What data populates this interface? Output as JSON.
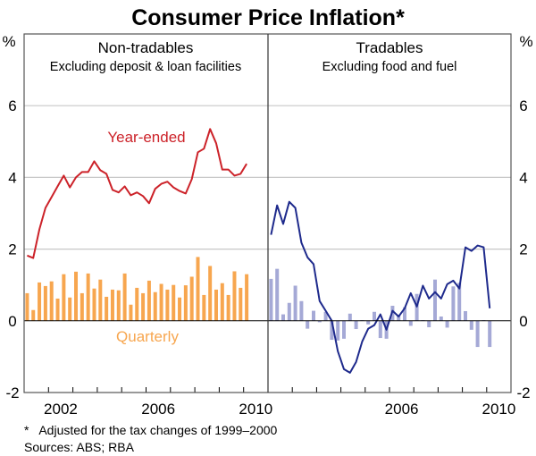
{
  "chart_data": {
    "type": "line+bar",
    "title": "Consumer Price Inflation*",
    "ylabel_left": "%",
    "ylabel_right": "%",
    "ylim": [
      -2,
      8
    ],
    "yticks": [
      -2,
      0,
      2,
      4,
      6
    ],
    "grid": true,
    "x_range_years": [
      2001,
      2010
    ],
    "x_tick_labels": [
      "2002",
      "2006",
      "2010"
    ],
    "x_start_label": "2001-Q1",
    "x_frequency": "quarterly",
    "footnote": "*   Adjusted for the tax changes of 1999–2000",
    "sources": "Sources: ABS; RBA",
    "colors": {
      "year_ended_nt": "#cc2229",
      "quarterly_nt": "#f7a64f",
      "year_ended_t": "#1e2a8c",
      "quarterly_t": "#a5a9d6"
    },
    "panels": [
      {
        "title": "Non-tradables",
        "subtitle": "Excluding deposit & loan facilities",
        "x_tick_labels": [
          "2002",
          "2006",
          "2010"
        ],
        "series": [
          {
            "name": "Year-ended",
            "type": "line",
            "label_position": "top-center",
            "values": [
              1.82,
              1.75,
              2.55,
              3.15,
              3.45,
              3.75,
              4.05,
              3.72,
              4.0,
              4.15,
              4.15,
              4.45,
              4.2,
              4.1,
              3.65,
              3.58,
              3.75,
              3.5,
              3.58,
              3.48,
              3.28,
              3.68,
              3.82,
              3.88,
              3.72,
              3.62,
              3.55,
              3.95,
              4.7,
              4.8,
              5.35,
              4.95,
              4.22,
              4.22,
              4.05,
              4.1,
              4.38
            ]
          },
          {
            "name": "Quarterly",
            "type": "bar",
            "label_position": "bottom-center",
            "values": [
              0.77,
              0.3,
              1.07,
              0.97,
              1.1,
              0.62,
              1.3,
              0.65,
              1.37,
              0.77,
              1.32,
              0.9,
              1.15,
              0.67,
              0.87,
              0.85,
              1.32,
              0.45,
              0.92,
              0.77,
              1.12,
              0.8,
              1.03,
              0.87,
              1.0,
              0.65,
              0.99,
              1.23,
              1.78,
              0.72,
              1.53,
              0.87,
              1.05,
              0.72,
              1.38,
              0.92,
              1.3
            ]
          }
        ]
      },
      {
        "title": "Tradables",
        "subtitle": "Excluding food and fuel",
        "x_tick_labels": [
          "2006",
          "2010"
        ],
        "series": [
          {
            "name": "Year-ended",
            "type": "line",
            "values": [
              2.4,
              3.22,
              2.7,
              3.32,
              3.15,
              2.18,
              1.77,
              1.58,
              0.55,
              0.28,
              0.0,
              -0.85,
              -1.35,
              -1.45,
              -1.15,
              -0.58,
              -0.22,
              -0.12,
              0.18,
              -0.25,
              0.28,
              0.12,
              0.35,
              0.77,
              0.4,
              0.98,
              0.62,
              0.8,
              0.62,
              1.02,
              1.12,
              0.9,
              2.05,
              1.95,
              2.1,
              2.05,
              0.35
            ]
          },
          {
            "name": "Quarterly",
            "type": "bar",
            "values": [
              1.17,
              1.45,
              0.18,
              0.5,
              0.98,
              0.55,
              -0.22,
              0.28,
              -0.04,
              0.25,
              -0.53,
              -0.55,
              -0.5,
              0.2,
              -0.23,
              0.02,
              -0.1,
              0.25,
              -0.48,
              -0.5,
              0.42,
              0.17,
              0.38,
              -0.14,
              0.75,
              0.02,
              -0.18,
              1.15,
              0.12,
              -0.19,
              0.96,
              1.06,
              0.27,
              -0.25,
              -0.73,
              0.02,
              -0.73
            ]
          }
        ]
      }
    ]
  }
}
